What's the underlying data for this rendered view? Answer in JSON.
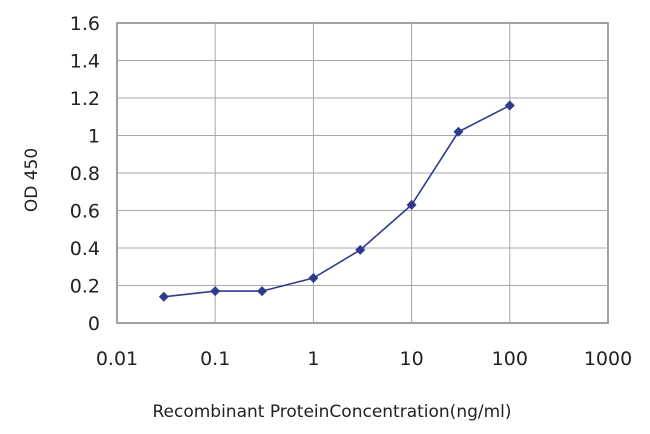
{
  "chart_data": {
    "type": "line",
    "xlabel": "Recombinant ProteinConcentration(ng/ml)",
    "ylabel": "OD 450",
    "x_scale": "log",
    "xlim": [
      0.01,
      1000
    ],
    "ylim": [
      0,
      1.6
    ],
    "x_ticks": [
      "0.01",
      "0.1",
      "1",
      "10",
      "100",
      "1000"
    ],
    "y_ticks": [
      "0",
      "0.2",
      "0.4",
      "0.6",
      "0.8",
      "1",
      "1.2",
      "1.4",
      "1.6"
    ],
    "grid": true,
    "legend": false,
    "series": [
      {
        "color": "#2e3a8c",
        "marker": "diamond",
        "x": [
          0.03,
          0.1,
          0.3,
          1,
          3,
          10,
          30,
          100
        ],
        "y": [
          0.14,
          0.17,
          0.17,
          0.24,
          0.39,
          0.63,
          1.02,
          1.16
        ]
      }
    ]
  }
}
